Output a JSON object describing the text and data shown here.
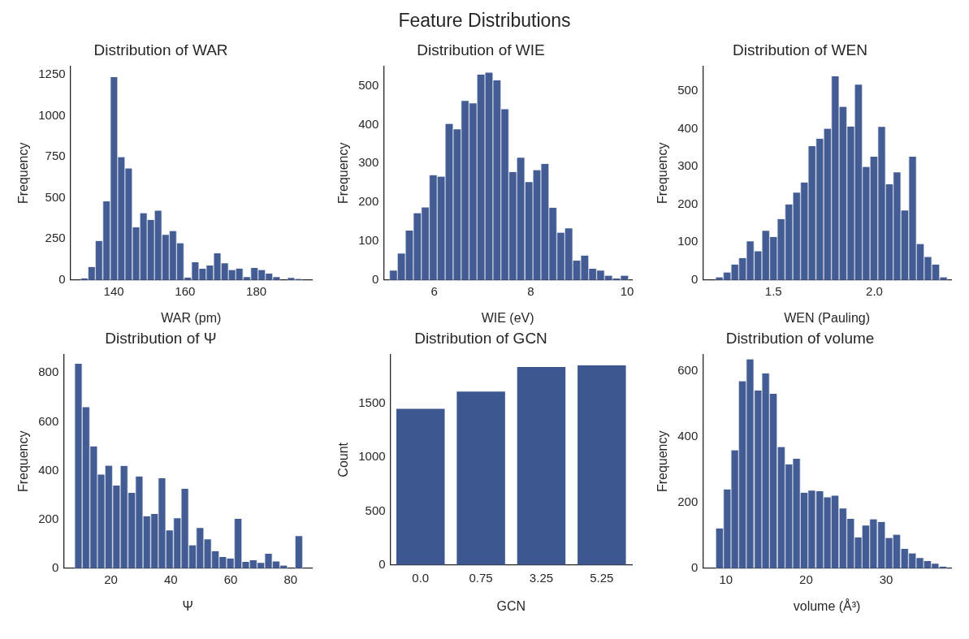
{
  "chart_data": [
    {
      "type": "other",
      "title": "Feature Distributions"
    },
    {
      "type": "histogram",
      "title": "Distribution of WAR",
      "xlabel": "WAR (pm)",
      "ylabel": "Frequency",
      "color": "#435c94",
      "bins": [
        130.7,
        132.8,
        134.8,
        136.9,
        139.0,
        141.1,
        143.1,
        145.2,
        147.3,
        149.4,
        151.4,
        153.5,
        155.6,
        157.6,
        159.7,
        161.8,
        163.9,
        165.9,
        168.0,
        170.1,
        172.2,
        174.2,
        176.3,
        178.4,
        180.5,
        182.5,
        184.6,
        186.7,
        188.7,
        190.8,
        192.9
      ],
      "values": [
        10,
        79,
        238,
        478,
        1235,
        748,
        679,
        320,
        407,
        366,
        422,
        275,
        298,
        224,
        15,
        108,
        68,
        88,
        162,
        101,
        61,
        70,
        17,
        73,
        61,
        38,
        18,
        0,
        12,
        6
      ],
      "xlim": [
        127.8,
        195.6
      ],
      "xticks": [
        140,
        160,
        180
      ],
      "ylim": [
        0,
        1300
      ],
      "yticks": [
        0,
        250,
        500,
        750,
        1000,
        1250
      ]
    },
    {
      "type": "histogram",
      "title": "Distribution of WIE",
      "xlabel": "WIE (eV)",
      "ylabel": "Frequency",
      "color": "#435c94",
      "bins": [
        5.07,
        5.24,
        5.4,
        5.57,
        5.73,
        5.9,
        6.06,
        6.23,
        6.39,
        6.56,
        6.72,
        6.89,
        7.05,
        7.22,
        7.38,
        7.55,
        7.71,
        7.88,
        8.05,
        8.21,
        8.38,
        8.54,
        8.71,
        8.87,
        9.04,
        9.2,
        9.37,
        9.53,
        9.7,
        9.86,
        10.03
      ],
      "values": [
        24,
        68,
        127,
        172,
        187,
        270,
        266,
        402,
        388,
        461,
        455,
        529,
        534,
        514,
        440,
        278,
        315,
        252,
        283,
        299,
        186,
        122,
        133,
        50,
        63,
        29,
        24,
        11,
        4,
        11
      ],
      "xlim": [
        4.95,
        10.1
      ],
      "xticks": [
        6,
        8,
        10
      ],
      "ylim": [
        0,
        550
      ],
      "yticks": [
        0,
        100,
        200,
        300,
        400,
        500
      ]
    },
    {
      "type": "histogram",
      "title": "Distribution of WEN",
      "xlabel": "WEN (Pauling)",
      "ylabel": "Frequency",
      "color": "#435c94",
      "bins": [
        1.213,
        1.251,
        1.29,
        1.328,
        1.366,
        1.404,
        1.443,
        1.481,
        1.519,
        1.557,
        1.596,
        1.634,
        1.672,
        1.71,
        1.749,
        1.787,
        1.825,
        1.864,
        1.902,
        1.94,
        1.978,
        2.017,
        2.055,
        2.093,
        2.131,
        2.17,
        2.208,
        2.246,
        2.284,
        2.323,
        2.361
      ],
      "values": [
        7,
        20,
        41,
        58,
        102,
        76,
        130,
        114,
        161,
        200,
        231,
        258,
        354,
        374,
        400,
        539,
        458,
        406,
        517,
        299,
        326,
        405,
        253,
        285,
        184,
        326,
        95,
        61,
        41,
        7
      ],
      "xlim": [
        1.15,
        2.38
      ],
      "xticks": [
        1.5,
        {
          "value": 2,
          "label": "2.0"
        }
      ],
      "ylim": [
        0,
        565
      ],
      "yticks": [
        0,
        100,
        200,
        300,
        400,
        500
      ]
    },
    {
      "type": "histogram",
      "title": "Distribution of Ψ",
      "xlabel": "Ψ",
      "ylabel": "Frequency",
      "color": "#435c94",
      "bins": [
        7.9,
        10.4,
        13.0,
        15.5,
        18.0,
        20.6,
        23.1,
        25.7,
        28.2,
        30.7,
        33.3,
        35.8,
        38.3,
        40.9,
        43.4,
        46.0,
        48.5,
        51.0,
        53.6,
        56.1,
        58.6,
        61.2,
        63.7,
        66.3,
        68.8,
        71.3,
        73.9,
        76.4,
        78.9,
        81.5,
        84.0
      ],
      "values": [
        838,
        660,
        499,
        384,
        420,
        339,
        419,
        309,
        376,
        213,
        222,
        369,
        155,
        205,
        325,
        94,
        165,
        118,
        70,
        46,
        40,
        202,
        26,
        33,
        22,
        59,
        28,
        11,
        0,
        132
      ],
      "xlim": [
        4.2,
        87.1
      ],
      "xticks": [
        20,
        40,
        60,
        80
      ],
      "ylim": [
        0,
        875
      ],
      "yticks": [
        0,
        200,
        400,
        600,
        800
      ]
    },
    {
      "type": "bar",
      "title": "Distribution of GCN",
      "xlabel": "GCN",
      "ylabel": "Count",
      "color": "#3d5890",
      "categories": [
        "0.0",
        "0.75",
        "3.25",
        "5.25"
      ],
      "values": [
        1448,
        1608,
        1835,
        1850
      ],
      "ylim": [
        0,
        1950
      ],
      "yticks": [
        0,
        500,
        1000,
        1500
      ]
    },
    {
      "type": "histogram",
      "title": "Distribution of volume",
      "xlabel": "volume (Å³)",
      "ylabel": "Frequency",
      "color": "#435c94",
      "bins": [
        8.7,
        9.7,
        10.6,
        11.6,
        12.5,
        13.5,
        14.5,
        15.4,
        16.4,
        17.4,
        18.3,
        19.3,
        20.2,
        21.2,
        22.2,
        23.1,
        24.1,
        25.1,
        26.0,
        27.0,
        27.9,
        28.9,
        29.9,
        30.8,
        31.8,
        32.8,
        33.7,
        34.7,
        35.6,
        36.6,
        37.6
      ],
      "values": [
        121,
        240,
        359,
        569,
        636,
        541,
        593,
        531,
        369,
        316,
        333,
        230,
        236,
        234,
        216,
        221,
        182,
        150,
        94,
        130,
        149,
        141,
        92,
        102,
        59,
        45,
        31,
        22,
        14,
        5
      ],
      "xlim": [
        7.1,
        38.1
      ],
      "xticks": [
        10,
        20,
        30
      ],
      "ylim": [
        0,
        650
      ],
      "yticks": [
        0,
        200,
        400,
        600
      ]
    }
  ]
}
